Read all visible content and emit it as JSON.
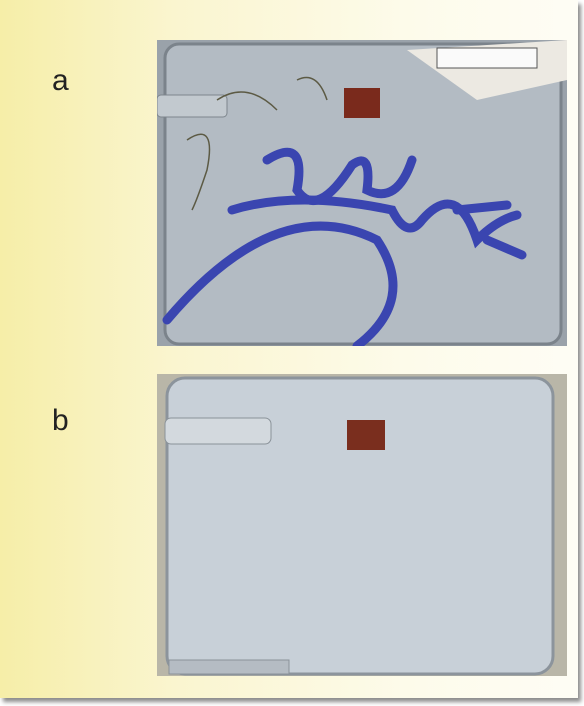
{
  "panels": [
    {
      "label": "a"
    },
    {
      "label": "b"
    }
  ]
}
